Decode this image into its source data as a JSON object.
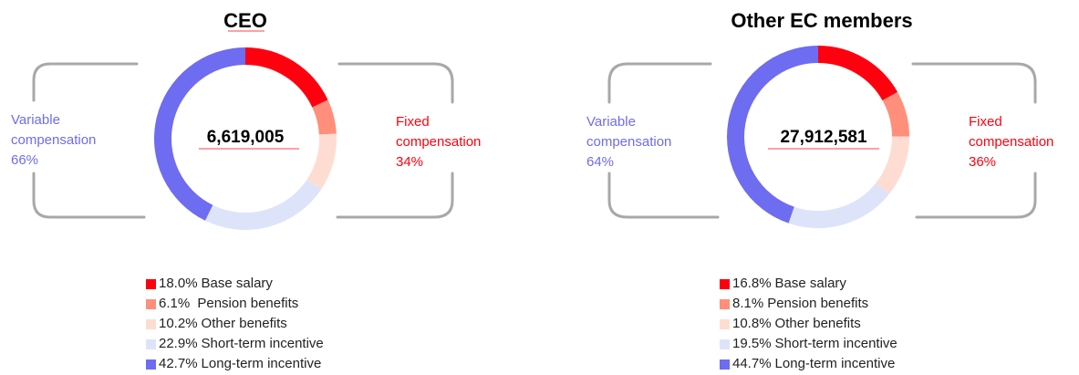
{
  "colors": {
    "fixed_label": "#ff000f",
    "variable_label": "#6e6cf0",
    "bracket": "#a8a8a8",
    "base_salary": "#ff000f",
    "pension": "#ff8f7a",
    "other_benefits": "#ffdcd2",
    "short_term": "#dde4fa",
    "long_term": "#6e6cf0"
  },
  "panels": [
    {
      "title": "CEO",
      "total": "6,619,005",
      "variable_label": [
        "Variable",
        "compensation",
        "66%"
      ],
      "fixed_label": [
        "Fixed",
        "compensation",
        "34%"
      ],
      "legend": [
        {
          "pct": "18.0%",
          "label": "Base salary"
        },
        {
          "pct": "6.1% ",
          "label": "Pension benefits"
        },
        {
          "pct": "10.2%",
          "label": "Other benefits"
        },
        {
          "pct": "22.9%",
          "label": "Short-term incentive"
        },
        {
          "pct": "42.7%",
          "label": "Long-term incentive"
        }
      ]
    },
    {
      "title": "Other EC members",
      "total": "27,912,581",
      "variable_label": [
        "Variable",
        "compensation",
        "64%"
      ],
      "fixed_label": [
        "Fixed",
        "compensation",
        "36%"
      ],
      "legend": [
        {
          "pct": "16.8%",
          "label": "Base salary"
        },
        {
          "pct": "8.1%",
          "label": "Pension benefits"
        },
        {
          "pct": "10.8%",
          "label": "Other benefits"
        },
        {
          "pct": "19.5%",
          "label": "Short-term incentive"
        },
        {
          "pct": "44.7%",
          "label": "Long-term incentive"
        }
      ]
    }
  ],
  "chart_data": [
    {
      "type": "pie",
      "title": "CEO",
      "center_label": "6,619,005",
      "categories": [
        "Base salary",
        "Pension benefits",
        "Other benefits",
        "Short-term incentive",
        "Long-term incentive"
      ],
      "values": [
        18.0,
        6.1,
        10.2,
        22.9,
        42.7
      ],
      "groups": [
        {
          "label": "Fixed compensation",
          "value": 34
        },
        {
          "label": "Variable compensation",
          "value": 66
        }
      ]
    },
    {
      "type": "pie",
      "title": "Other EC members",
      "center_label": "27,912,581",
      "categories": [
        "Base salary",
        "Pension benefits",
        "Other benefits",
        "Short-term incentive",
        "Long-term incentive"
      ],
      "values": [
        16.8,
        8.1,
        10.8,
        19.5,
        44.7
      ],
      "groups": [
        {
          "label": "Fixed compensation",
          "value": 36
        },
        {
          "label": "Variable compensation",
          "value": 64
        }
      ]
    }
  ]
}
